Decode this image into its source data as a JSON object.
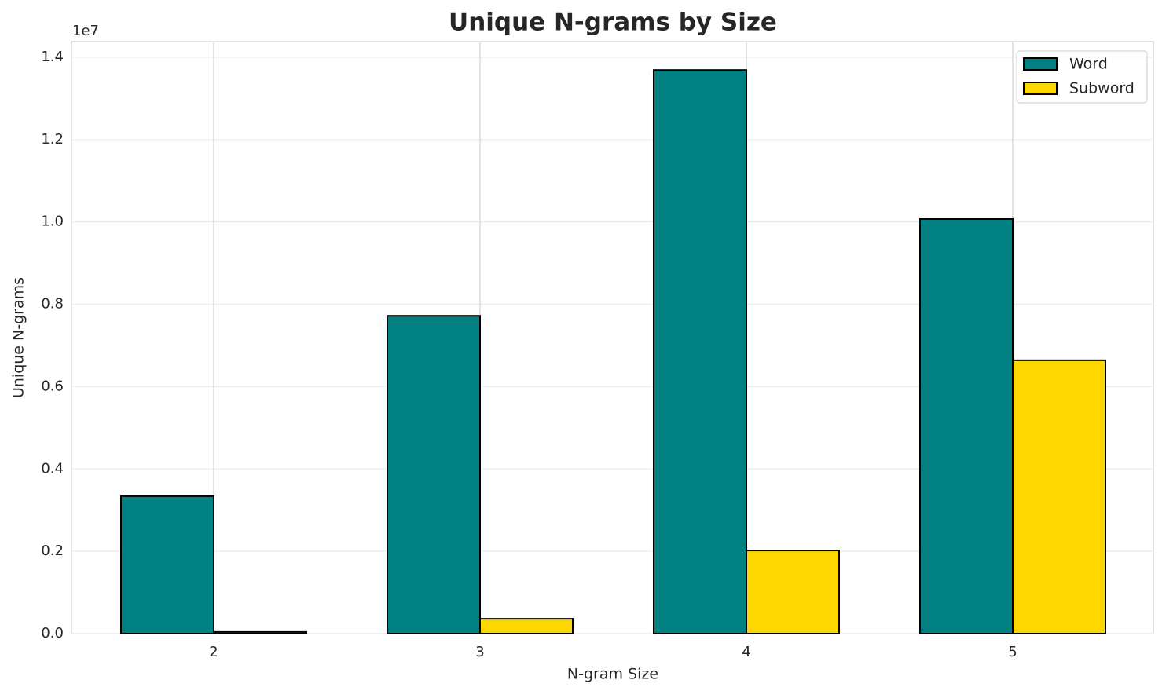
{
  "chart_data": {
    "type": "bar",
    "title": "Unique N-grams by Size",
    "x_label": "N-gram Size",
    "y_label": "Unique N-grams",
    "y_offset_label": "1e7",
    "categories": [
      "2",
      "3",
      "4",
      "5"
    ],
    "series": [
      {
        "name": "Word",
        "color": "#008080",
        "values": [
          0.334,
          0.772,
          1.369,
          1.007
        ]
      },
      {
        "name": "Subword",
        "color": "#ffd700",
        "values": [
          0.004,
          0.036,
          0.202,
          0.664
        ]
      }
    ],
    "ylim": [
      0,
      1.438
    ],
    "yticks": [
      {
        "value": 0,
        "label": "0.0"
      },
      0.2,
      0.4,
      0.6,
      0.8,
      {
        "value": 1,
        "label": "1.0"
      },
      1.2,
      1.4
    ],
    "grid": true,
    "legend": "upper right"
  }
}
